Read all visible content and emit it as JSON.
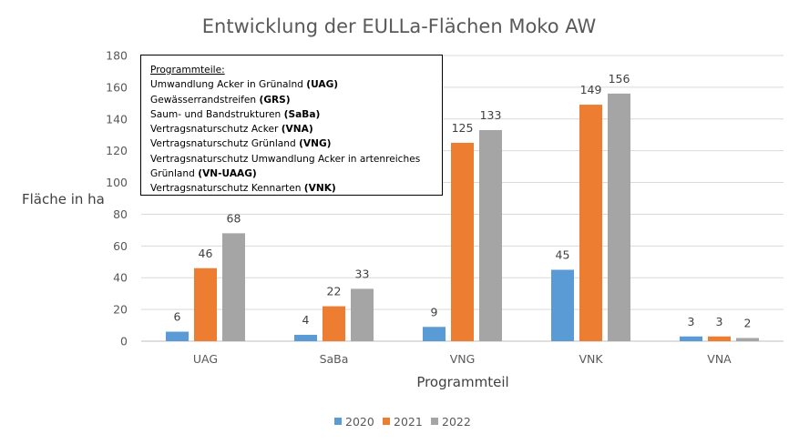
{
  "chart_data": {
    "type": "bar",
    "title": "Entwicklung der EULLa-Flächen Moko AW",
    "xlabel": "Programmteil",
    "ylabel": "Fläche in ha",
    "ylim": [
      0,
      180
    ],
    "yticks": [
      "0",
      "20",
      "40",
      "60",
      "80",
      "100",
      "120",
      "140",
      "160",
      "180"
    ],
    "grid": true,
    "legend_position": "bottom",
    "categories": [
      "UAG",
      "SaBa",
      "VNG",
      "VNK",
      "VNA"
    ],
    "series": [
      {
        "name": "2020",
        "color": "#5B9BD5",
        "values": [
          6,
          4,
          9,
          45,
          3
        ]
      },
      {
        "name": "2021",
        "color": "#ED7D31",
        "values": [
          46,
          22,
          125,
          149,
          3
        ]
      },
      {
        "name": "2022",
        "color": "#A5A5A5",
        "values": [
          68,
          33,
          133,
          156,
          2
        ]
      }
    ]
  },
  "note": {
    "heading": "Programmteile:",
    "lines": [
      {
        "text": "Umwandlung Acker in Grünalnd ",
        "code": "(UAG)"
      },
      {
        "text": "Gewässerrandstreifen ",
        "code": "(GRS)"
      },
      {
        "text": "Saum- und Bandstrukturen ",
        "code": "(SaBa)"
      },
      {
        "text": "Vertragsnaturschutz Acker ",
        "code": "(VNA)"
      },
      {
        "text": "Vertragsnaturschutz Grünland ",
        "code": "(VNG)"
      },
      {
        "text": "Vertragsnaturschutz Umwandlung Acker  in artenreiches",
        "code": ""
      },
      {
        "text": "Grünland ",
        "code": "(VN-UAAG)"
      },
      {
        "text": "Vertragsnaturschutz Kennarten ",
        "code": "(VNK)"
      }
    ]
  }
}
